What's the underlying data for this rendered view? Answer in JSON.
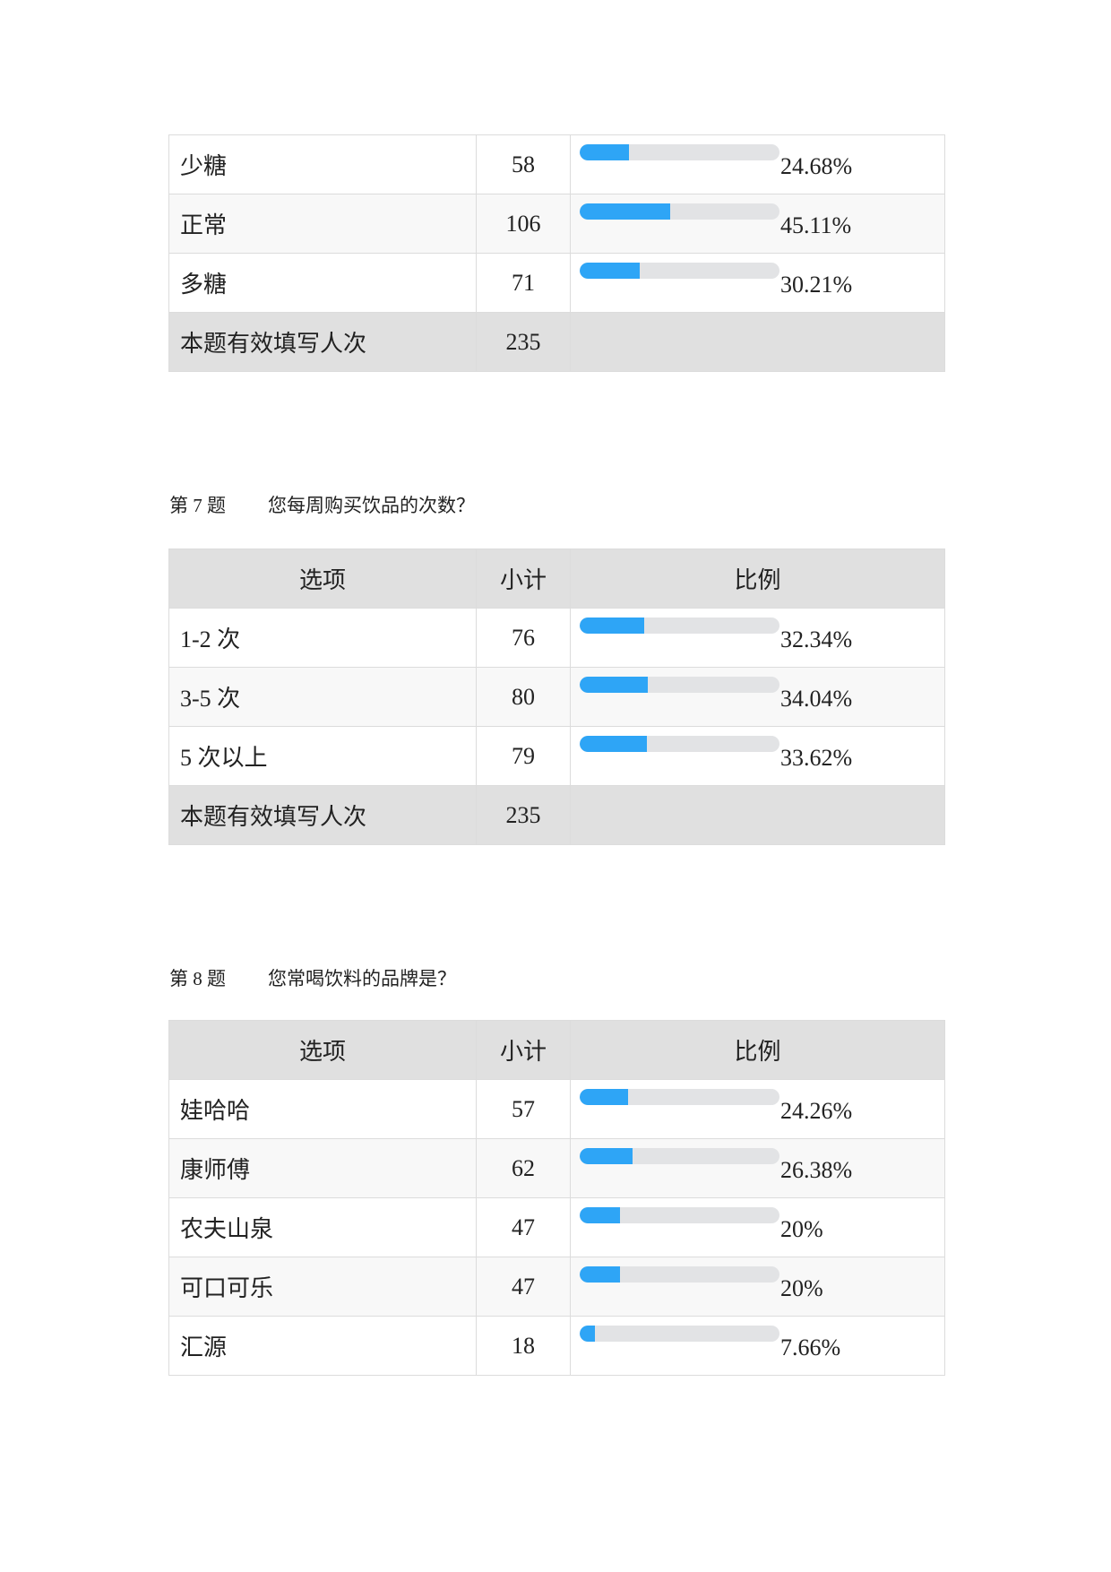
{
  "accent_color": "#2ea5f6",
  "track_color": "#e2e3e5",
  "headers": {
    "option": "选项",
    "count": "小计",
    "ratio": "比例"
  },
  "q6": {
    "rows": [
      {
        "label": "少糖",
        "count": "58",
        "pct": "24.68%",
        "value": 24.68
      },
      {
        "label": "正常",
        "count": "106",
        "pct": "45.11%",
        "value": 45.11
      },
      {
        "label": "多糖",
        "count": "71",
        "pct": "30.21%",
        "value": 30.21
      }
    ],
    "total_label": "本题有效填写人次",
    "total": "235"
  },
  "q7": {
    "number": "第 7 题",
    "title": "您每周购买饮品的次数？",
    "rows": [
      {
        "label": "1-2 次",
        "count": "76",
        "pct": "32.34%",
        "value": 32.34
      },
      {
        "label": "3-5 次",
        "count": "80",
        "pct": "34.04%",
        "value": 34.04
      },
      {
        "label": "5 次以上",
        "count": "79",
        "pct": "33.62%",
        "value": 33.62
      }
    ],
    "total_label": "本题有效填写人次",
    "total": "235"
  },
  "q8": {
    "number": "第 8 题",
    "title": "您常喝饮料的品牌是？",
    "rows": [
      {
        "label": "娃哈哈",
        "count": "57",
        "pct": "24.26%",
        "value": 24.26
      },
      {
        "label": "康师傅",
        "count": "62",
        "pct": "26.38%",
        "value": 26.38
      },
      {
        "label": "农夫山泉",
        "count": "47",
        "pct": "20%",
        "value": 20
      },
      {
        "label": "可口可乐",
        "count": "47",
        "pct": "20%",
        "value": 20
      },
      {
        "label": "汇源",
        "count": "18",
        "pct": "7.66%",
        "value": 7.66
      }
    ]
  }
}
